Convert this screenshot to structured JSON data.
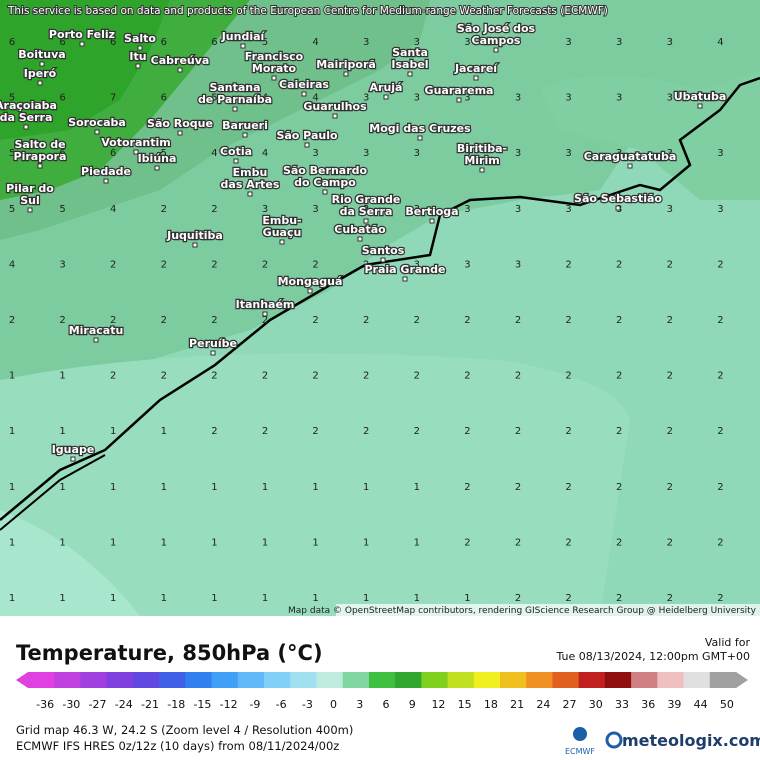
{
  "notice": "This service is based on data and products of the European Centre for Medium-range Weather Forecasts (ECMWF)",
  "attribution": "Map data © OpenStreetMap contributors, rendering GIScience Research Group @ Heidelberg University",
  "places": [
    [
      "Porto Feliz"
    ],
    [
      "Salto"
    ],
    [
      "Jundiaí"
    ],
    [
      "Boituva"
    ],
    [
      "Itu"
    ],
    [
      "Cabreúva"
    ],
    [
      "Francisco",
      "Morato"
    ],
    [
      "Mairiporã"
    ],
    [
      "Santa",
      "Isabel"
    ],
    [
      "São José dos",
      "Campos"
    ],
    [
      "Jacareí"
    ],
    [
      "Iperó"
    ],
    [
      "Caieiras"
    ],
    [
      "Arujá"
    ],
    [
      "Santana",
      "de Parnaíba"
    ],
    [
      "Guarulhos"
    ],
    [
      "Guararema"
    ],
    [
      "Ubatuba"
    ],
    [
      "Araçoiaba",
      "da Serra"
    ],
    [
      "Sorocaba"
    ],
    [
      "São Roque"
    ],
    [
      "Barueri"
    ],
    [
      "São Paulo"
    ],
    [
      "Mogi das Cruzes"
    ],
    [
      "Votorantim"
    ],
    [
      "Salto de",
      "Pirapora"
    ],
    [
      "Cotia"
    ],
    [
      "Ibiúna"
    ],
    [
      "Biritiba-",
      "Mirim"
    ],
    [
      "Caraguatatuba"
    ],
    [
      "Embu",
      "das Artes"
    ],
    [
      "São Bernardo",
      "do Campo"
    ],
    [
      "Piedade"
    ],
    [
      "Pilar do",
      "Sul"
    ],
    [
      "Rio Grande",
      "da Serra"
    ],
    [
      "São Sebastião"
    ],
    [
      "Bertioga"
    ],
    [
      "Juquitiba"
    ],
    [
      "Embu-",
      "Guaçu"
    ],
    [
      "Cubatão"
    ],
    [
      "Santos"
    ],
    [
      "Praia Grande"
    ],
    [
      "Mongaguá"
    ],
    [
      "Itanhaém"
    ],
    [
      "Miracatu"
    ],
    [
      "Peruíbe"
    ],
    [
      "Iguape"
    ]
  ],
  "grid": {
    "rows": [
      [
        6,
        6,
        6,
        6,
        6,
        5,
        4,
        3,
        3,
        3,
        3,
        3,
        3,
        3,
        4
      ],
      [
        5,
        6,
        7,
        6,
        5,
        4,
        4,
        3,
        3,
        3,
        3,
        3,
        3,
        3,
        3
      ],
      [
        5,
        6,
        6,
        5,
        4,
        4,
        3,
        3,
        3,
        3,
        3,
        3,
        3,
        3,
        3
      ],
      [
        5,
        5,
        4,
        2,
        2,
        3,
        3,
        3,
        3,
        3,
        3,
        3,
        3,
        3,
        3
      ],
      [
        4,
        3,
        2,
        2,
        2,
        2,
        2,
        2,
        3,
        3,
        3,
        2,
        2,
        2,
        2
      ],
      [
        2,
        2,
        2,
        2,
        2,
        2,
        2,
        2,
        2,
        2,
        2,
        2,
        2,
        2,
        2
      ],
      [
        1,
        1,
        2,
        2,
        2,
        2,
        2,
        2,
        2,
        2,
        2,
        2,
        2,
        2,
        2
      ],
      [
        1,
        1,
        1,
        1,
        2,
        2,
        2,
        2,
        2,
        2,
        2,
        2,
        2,
        2,
        2
      ],
      [
        1,
        1,
        1,
        1,
        1,
        1,
        1,
        1,
        1,
        2,
        2,
        2,
        2,
        2,
        2
      ],
      [
        1,
        1,
        1,
        1,
        1,
        1,
        1,
        1,
        1,
        2,
        2,
        2,
        2,
        2,
        2
      ],
      [
        1,
        1,
        1,
        1,
        1,
        1,
        1,
        1,
        1,
        1,
        2,
        2,
        2,
        2,
        2
      ]
    ]
  },
  "legend": {
    "title": "Temperature, 850hPa (°C)",
    "ticks": [
      -36,
      -30,
      -27,
      -24,
      -21,
      -18,
      -15,
      -12,
      -9,
      -6,
      -3,
      0,
      3,
      6,
      9,
      12,
      15,
      18,
      21,
      24,
      27,
      30,
      33,
      36,
      39,
      44,
      50
    ],
    "colors": [
      "#e040e0",
      "#c040e0",
      "#a040e0",
      "#8040e0",
      "#6048e0",
      "#4060e8",
      "#3080f0",
      "#40a0f8",
      "#60b8f8",
      "#80d0f8",
      "#a0e0f0",
      "#c0ece0",
      "#80d8a0",
      "#40c040",
      "#30a830",
      "#80d020",
      "#c0e020",
      "#f0f020",
      "#f0c020",
      "#f09020",
      "#e06020",
      "#c02020",
      "#901010",
      "#d08080",
      "#f0c0c0",
      "#e0e0e0",
      "#a0a0a0"
    ]
  },
  "valid_label": "Valid for",
  "valid_time": "Tue 08/13/2024, 12:00pm GMT+00",
  "grid_info": "Grid map 46.3 W, 24.2 S (Zoom level 4 / Resolution 400m)",
  "model_info": "ECMWF IFS HRES 0z/12z (10 days) from 08/11/2024/00z",
  "ecmwf": "ECMWF",
  "brand": "meteologix.com"
}
